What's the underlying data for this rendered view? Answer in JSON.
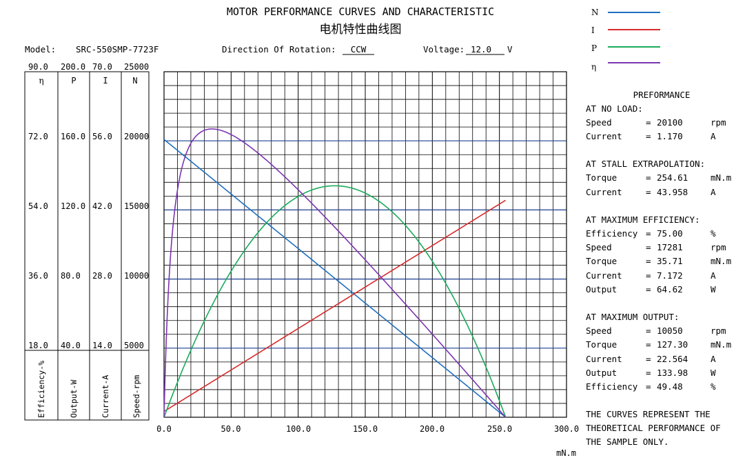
{
  "header": {
    "title": "MOTOR PERFORMANCE CURVES AND CHARACTERISTIC",
    "subtitle": "电机特性曲线图",
    "model_label": "Model:",
    "model_value": "SRC-550SMP-7723F",
    "rotation_label": "Direction Of Rotation:",
    "rotation_value": "CCW",
    "voltage_label": "Voltage:",
    "voltage_value": "12.0",
    "voltage_unit": "V"
  },
  "legend": [
    {
      "label": "N",
      "color": "#1f6fbf"
    },
    {
      "label": "I",
      "color": "#d62a2a"
    },
    {
      "label": "P",
      "color": "#1aaa5a"
    },
    {
      "label": "η",
      "color": "#7b35b0"
    }
  ],
  "performance": {
    "title": "PREFORMANCE",
    "no_load": {
      "heading": "AT NO LOAD:",
      "rows": [
        {
          "name": "Speed",
          "eq": "=",
          "value": "20100",
          "unit": "rpm"
        },
        {
          "name": "Current",
          "eq": "=",
          "value": "1.170",
          "unit": "A"
        }
      ]
    },
    "stall": {
      "heading": "AT STALL EXTRAPOLATION:",
      "rows": [
        {
          "name": "Torque",
          "eq": "=",
          "value": "254.61",
          "unit": "mN.m"
        },
        {
          "name": "Current",
          "eq": "=",
          "value": "43.958",
          "unit": "A"
        }
      ]
    },
    "max_eff": {
      "heading": "AT MAXIMUM EFFICIENCY:",
      "rows": [
        {
          "name": "Efficiency",
          "eq": "=",
          "value": "75.00",
          "unit": "%"
        },
        {
          "name": "Speed",
          "eq": "=",
          "value": "17281",
          "unit": "rpm"
        },
        {
          "name": "Torque",
          "eq": "=",
          "value": "35.71",
          "unit": "mN.m"
        },
        {
          "name": "Current",
          "eq": "=",
          "value": "7.172",
          "unit": "A"
        },
        {
          "name": "Output",
          "eq": "=",
          "value": "64.62",
          "unit": "W"
        }
      ]
    },
    "max_out": {
      "heading": "AT MAXIMUM OUTPUT:",
      "rows": [
        {
          "name": "Speed",
          "eq": "=",
          "value": "10050",
          "unit": "rpm"
        },
        {
          "name": "Torque",
          "eq": "=",
          "value": "127.30",
          "unit": "mN.m"
        },
        {
          "name": "Current",
          "eq": "=",
          "value": "22.564",
          "unit": "A"
        },
        {
          "name": "Output",
          "eq": "=",
          "value": "133.98",
          "unit": "W"
        },
        {
          "name": "Efficiency",
          "eq": "=",
          "value": "49.48",
          "unit": "%"
        }
      ]
    },
    "note": [
      "THE CURVES REPRESENT THE",
      "THEORETICAL PERFORMANCE OF",
      "THE SAMPLE ONLY."
    ]
  },
  "axes_table": {
    "column_headers": [
      "η",
      "P",
      "I",
      "N"
    ],
    "column_titles": [
      "Efficiency-%",
      "Output-W",
      "Current-A",
      "Speed-rpm"
    ],
    "rows": [
      [
        "90.0",
        "200.0",
        "70.0",
        "25000"
      ],
      [
        "72.0",
        "160.0",
        "56.0",
        "20000"
      ],
      [
        "54.0",
        "120.0",
        "42.0",
        "15000"
      ],
      [
        "36.0",
        "80.0",
        "28.0",
        "10000"
      ],
      [
        "18.0",
        "40.0",
        "14.0",
        "5000"
      ]
    ]
  },
  "chart_data": {
    "type": "line",
    "title": "MOTOR PERFORMANCE CURVES AND CHARACTERISTIC",
    "xlabel": "mN.m",
    "xlim": [
      0,
      300
    ],
    "x_ticks": [
      "0.0",
      "50.0",
      "100.0",
      "150.0",
      "200.0",
      "250.0",
      "300.0"
    ],
    "x_tick_values": [
      0,
      50,
      100,
      150,
      200,
      250,
      300
    ],
    "grid": true,
    "y_axes": {
      "N": {
        "label": "Speed-rpm",
        "range": [
          0,
          25000
        ]
      },
      "I": {
        "label": "Current-A",
        "range": [
          0,
          70
        ]
      },
      "P": {
        "label": "Output-W",
        "range": [
          0,
          200
        ]
      },
      "eta": {
        "label": "Efficiency-%",
        "range": [
          0,
          90
        ]
      }
    },
    "parameters": {
      "no_load_speed_rpm": 20100,
      "no_load_current_a": 1.17,
      "stall_torque_mNm": 254.61,
      "stall_current_a": 43.958,
      "voltage_v": 12.0
    },
    "series": [
      {
        "name": "N",
        "axis": "N",
        "x": [
          0,
          50,
          100,
          150,
          200,
          254.61
        ],
        "values": [
          20100,
          16153,
          12206,
          8260,
          4313,
          0
        ]
      },
      {
        "name": "I",
        "axis": "I",
        "x": [
          0,
          50,
          100,
          150,
          200,
          254.61
        ],
        "values": [
          1.17,
          9.57,
          17.98,
          26.38,
          34.78,
          43.96
        ]
      },
      {
        "name": "P",
        "axis": "P",
        "x": [
          0,
          25,
          50,
          75,
          100,
          127.3,
          150,
          175,
          200,
          225,
          254.61
        ],
        "values": [
          0,
          46.0,
          84.6,
          115.9,
          127.8,
          133.98,
          129.7,
          113.0,
          90.3,
          60.0,
          0
        ]
      },
      {
        "name": "η",
        "axis": "eta",
        "x": [
          0,
          5,
          10,
          20,
          35.71,
          50,
          75,
          100,
          125,
          150,
          175,
          200,
          225,
          254.61
        ],
        "values": [
          0,
          43.0,
          58.0,
          70.0,
          75.0,
          73.6,
          67.3,
          59.1,
          50.6,
          41.0,
          32.2,
          22.9,
          13.4,
          0
        ]
      }
    ]
  }
}
